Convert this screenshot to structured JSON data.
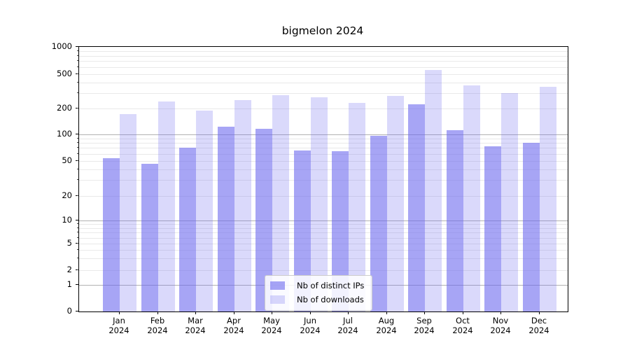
{
  "chart_data": {
    "type": "bar",
    "title": "bigmelon 2024",
    "categories": [
      "Jan",
      "Feb",
      "Mar",
      "Apr",
      "May",
      "Jun",
      "Jul",
      "Aug",
      "Sep",
      "Oct",
      "Nov",
      "Dec"
    ],
    "category_year_line": "2024",
    "series": [
      {
        "name": "Nb of distinct IPs",
        "color": "rgba(108,105,238,0.6)",
        "values": [
          54,
          46,
          70,
          124,
          117,
          66,
          64,
          96,
          224,
          112,
          73,
          80
        ]
      },
      {
        "name": "Nb of downloads",
        "color": "rgba(108,105,238,0.25)",
        "values": [
          173,
          241,
          187,
          248,
          287,
          270,
          231,
          281,
          559,
          372,
          303,
          358
        ]
      }
    ],
    "xlabel": "",
    "ylabel": "",
    "ylim": [
      0,
      1000
    ],
    "yscale": "asinh",
    "y_ticks": [
      0,
      1,
      2,
      5,
      10,
      20,
      50,
      100,
      200,
      500,
      1000
    ],
    "grid": {
      "major_at": [
        1,
        10,
        100
      ],
      "major_color": "#b2b2b2",
      "minor_color": "#e9e9e9",
      "visible": true
    },
    "legend_position": "lower center"
  }
}
